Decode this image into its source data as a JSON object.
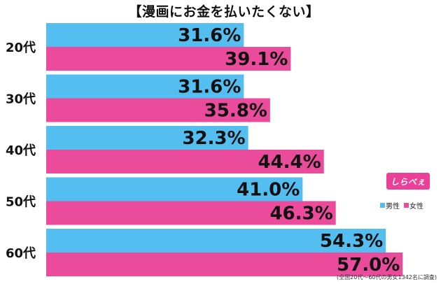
{
  "chart_data": {
    "type": "bar",
    "orientation": "horizontal",
    "title": "【漫画にお金を払いたくない】",
    "categories": [
      "20代",
      "30代",
      "40代",
      "50代",
      "60代"
    ],
    "series": [
      {
        "name": "男性",
        "values": [
          31.6,
          31.6,
          32.3,
          41.0,
          54.3
        ],
        "labels": [
          "31.6%",
          "31.6%",
          "32.3%",
          "41.0%",
          "54.3%"
        ],
        "color": "#55bef0"
      },
      {
        "name": "女性",
        "values": [
          39.1,
          35.8,
          44.4,
          46.3,
          57.0
        ],
        "labels": [
          "39.1%",
          "35.8%",
          "44.4%",
          "46.3%",
          "57.0%"
        ],
        "color": "#ea4b9a"
      }
    ],
    "xlim": [
      0,
      61
    ],
    "grid": false,
    "legend_position": "right"
  },
  "brand": {
    "name": "しらべぇ",
    "color": "#ec3f97"
  },
  "footnote": "(全国20代〜60代の男女1342名に調査)"
}
